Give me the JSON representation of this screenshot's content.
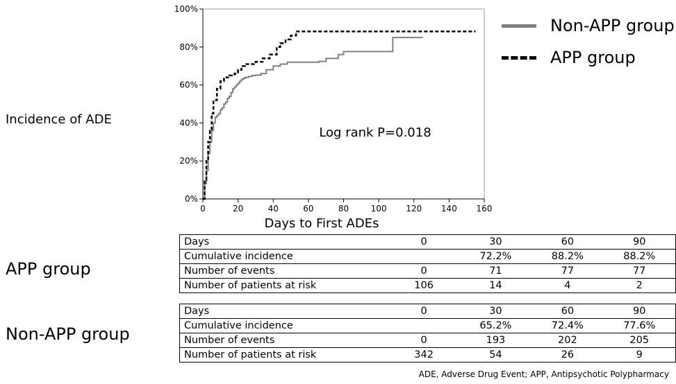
{
  "chart_data": {
    "type": "line",
    "xlabel": "Days to First ADEs",
    "ylabel": "Incidence of ADE",
    "xlim": [
      0,
      160
    ],
    "ylim": [
      0,
      100
    ],
    "xticks": [
      0,
      20,
      40,
      60,
      80,
      100,
      120,
      140,
      160
    ],
    "yticks": [
      0,
      20,
      40,
      60,
      80,
      100
    ],
    "ytick_labels": [
      "0%",
      "20%",
      "40%",
      "60%",
      "80%",
      "100%"
    ],
    "annotation": "Log rank P=0.018",
    "legend_position": "top-right",
    "series": [
      {
        "name": "Non-APP group",
        "style": "solid",
        "color": "#808080",
        "x": [
          0,
          1,
          2,
          3,
          4,
          5,
          6,
          7,
          8,
          9,
          10,
          11,
          12,
          13,
          14,
          15,
          16,
          17,
          18,
          19,
          20,
          21,
          22,
          23,
          24,
          26,
          28,
          30,
          33,
          36,
          40,
          44,
          48,
          55,
          66,
          70,
          77,
          80,
          90,
          100,
          108,
          115,
          125
        ],
        "y": [
          0,
          8,
          15,
          24,
          30,
          36,
          40,
          43,
          44,
          45,
          47,
          48,
          50,
          51,
          53,
          54,
          56,
          58,
          59,
          60,
          61,
          62,
          63,
          63.5,
          64,
          64.5,
          65,
          65.2,
          66,
          68,
          70,
          71,
          72,
          72,
          72.4,
          74,
          76,
          77.6,
          77.6,
          77.6,
          85,
          85,
          85
        ]
      },
      {
        "name": "APP group",
        "style": "dashed",
        "color": "#000000",
        "x": [
          0,
          1,
          2,
          3,
          4,
          5,
          6,
          8,
          10,
          12,
          15,
          18,
          20,
          22,
          24,
          30,
          34,
          38,
          42,
          44,
          47,
          50,
          53,
          60,
          70,
          90,
          120,
          155
        ],
        "y": [
          0,
          10,
          20,
          30,
          36,
          45,
          52,
          58,
          62,
          64,
          65,
          66,
          68,
          70,
          71,
          72.2,
          74,
          76,
          80,
          82,
          84,
          86,
          88.2,
          88.2,
          88.2,
          88.2,
          88.2,
          88.2
        ]
      }
    ]
  },
  "group_labels": {
    "app": "APP group",
    "non_app": "Non-APP group"
  },
  "tables": [
    {
      "rows": [
        [
          "Days",
          "0",
          "30",
          "60",
          "90"
        ],
        [
          "Cumulative incidence",
          "",
          "72.2%",
          "88.2%",
          "88.2%"
        ],
        [
          "Number of events",
          "0",
          "71",
          "77",
          "77"
        ],
        [
          "Number of patients at risk",
          "106",
          "14",
          "4",
          "2"
        ]
      ]
    },
    {
      "rows": [
        [
          "Days",
          "0",
          "30",
          "60",
          "90"
        ],
        [
          "Cumulative incidence",
          "",
          "65.2%",
          "72.4%",
          "77.6%"
        ],
        [
          "Number of events",
          "0",
          "193",
          "202",
          "205"
        ],
        [
          "Number of patients at risk",
          "342",
          "54",
          "26",
          "9"
        ]
      ]
    }
  ],
  "footnote": "ADE, Adverse Drug Event; APP, Antipsychotic Polypharmacy"
}
